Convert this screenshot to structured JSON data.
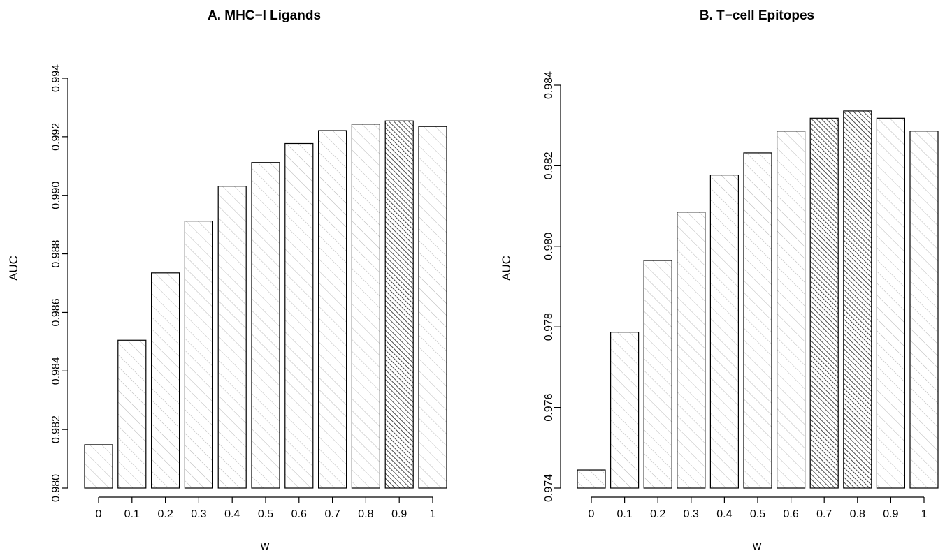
{
  "chart_data": [
    {
      "type": "bar",
      "title": "A. MHC−I Ligands",
      "xlabel": "w",
      "ylabel": "AUC",
      "categories": [
        "0",
        "0.1",
        "0.2",
        "0.3",
        "0.4",
        "0.5",
        "0.6",
        "0.7",
        "0.8",
        "0.9",
        "1"
      ],
      "values": [
        0.98148,
        0.98505,
        0.98735,
        0.98912,
        0.99031,
        0.99112,
        0.99177,
        0.99221,
        0.99243,
        0.99254,
        0.99235
      ],
      "highlighted": [
        "0.9"
      ],
      "ylim": [
        0.98,
        0.994
      ],
      "yticks": [
        0.98,
        0.982,
        0.984,
        0.986,
        0.988,
        0.99,
        0.992,
        0.994
      ],
      "ytick_labels": [
        "0.980",
        "0.982",
        "0.984",
        "0.986",
        "0.988",
        "0.990",
        "0.992",
        "0.994"
      ],
      "grid": false
    },
    {
      "type": "bar",
      "title": "B. T−cell Epitopes",
      "xlabel": "w",
      "ylabel": "AUC",
      "categories": [
        "0",
        "0.1",
        "0.2",
        "0.3",
        "0.4",
        "0.5",
        "0.6",
        "0.7",
        "0.8",
        "0.9",
        "1"
      ],
      "values": [
        0.97445,
        0.97787,
        0.97965,
        0.98085,
        0.98177,
        0.98232,
        0.98286,
        0.98318,
        0.98336,
        0.98318,
        0.98286
      ],
      "highlighted": [
        "0.7",
        "0.8"
      ],
      "ylim": [
        0.973,
        0.984
      ],
      "yticks": [
        0.974,
        0.976,
        0.978,
        0.98,
        0.982,
        0.984
      ],
      "ytick_labels": [
        "0.974",
        "0.976",
        "0.978",
        "0.980",
        "0.982",
        "0.984"
      ],
      "grid": false
    }
  ],
  "colors": {
    "bar_outline": "#000000",
    "hatch_light": "#b8b8b8",
    "hatch_dark": "#222222",
    "background": "#ffffff"
  }
}
